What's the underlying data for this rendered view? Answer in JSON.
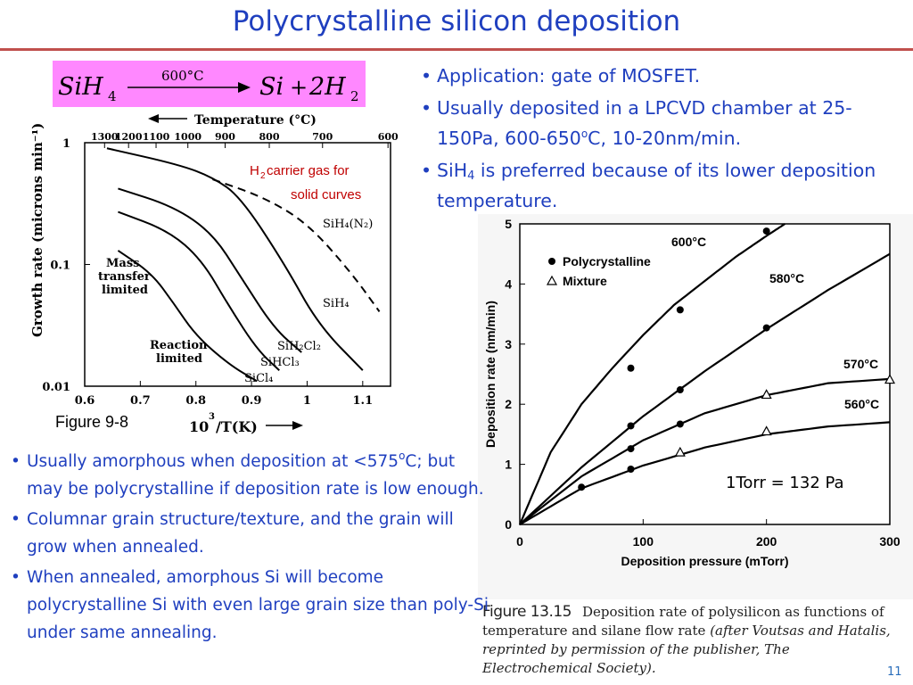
{
  "title": "Polycrystalline silicon deposition",
  "equation": {
    "reactant": "SiH",
    "reactant_sub": "4",
    "condition": "600°C",
    "product1": "Si",
    "plus": "+",
    "product2": "2H",
    "product2_sub": "2"
  },
  "right_bullets": {
    "b1": "Application: gate of MOSFET.",
    "b2": "Usually deposited in a LPCVD chamber at 25-150Pa, 600-650",
    "b2_sup": "o",
    "b2_end": "C, 10-20nm/min.",
    "b3_pre": "SiH",
    "b3_sub": "4",
    "b3_post": " is preferred because of its lower deposition temperature."
  },
  "left_bullets": {
    "b1": "Usually amorphous when deposition at <575",
    "b1_sup": "o",
    "b1_end": "C; but may be polycrystalline if deposition rate is low enough.",
    "b2": "Columnar grain structure/texture, and the grain will grow when annealed.",
    "b3": " When annealed, amorphous Si will become polycrystalline Si with even large grain size than poly-Si under same annealing."
  },
  "bullet_glyph": "•",
  "figure1": {
    "caption": "Figure 9-8",
    "temp_axis_label": "Temperature (°C)",
    "temp_ticks": [
      "1300",
      "1200",
      "1100",
      "1000",
      "900",
      "800",
      "700",
      "600"
    ],
    "ylabel": "Growth rate (microns min⁻¹)",
    "y_ticks": [
      "1",
      "0.1",
      "0.01"
    ],
    "x_ticks": [
      "0.6",
      "0.7",
      "0.8",
      "0.9",
      "1",
      "1.1"
    ],
    "xlabel_base": "10",
    "xlabel_sup": "3",
    "xlabel_rest": "/T(K)",
    "h2_note_pre": "H",
    "h2_note_sub": "2",
    "h2_note_post": " carrier gas for",
    "h2_note_line2": "solid curves",
    "labels": {
      "mass1": "Mass",
      "mass2": "transfer",
      "mass3": "limited",
      "reac1": "Reaction",
      "reac2": "limited",
      "sih4n2": "SiH₄(N₂)",
      "sih4": "SiH₄",
      "sih2cl2": "SiH₂Cl₂",
      "sihcl3": "SiHCl₃",
      "sicl4": "SiCl₄"
    },
    "red_color": "#c00000"
  },
  "note_torr": "1Torr = 132 Pa",
  "figure2_caption": {
    "fig": "Figure 13.15",
    "text": "Deposition rate of polysilicon as functions of temperature and silane flow rate",
    "cite": "(after Voutsas and Hatalis, reprinted by permission of the publisher, The Electrochemical Society)."
  },
  "page_number": "11",
  "chart_data": [
    {
      "type": "line",
      "title": "",
      "xlabel": "10^3/T(K)",
      "ylabel": "Growth rate (microns min⁻¹)",
      "xlim": [
        0.6,
        1.16
      ],
      "ylim": [
        0.01,
        1
      ],
      "y_scale": "log",
      "secondary_x_axis": {
        "label": "Temperature (°C)",
        "ticks": [
          1300,
          1200,
          1100,
          1000,
          900,
          800,
          700,
          600
        ]
      },
      "grid": false,
      "series": [
        {
          "name": "SiH₄(N₂)",
          "style": "dashed",
          "x": [
            0.83,
            0.92,
            1.0,
            1.08,
            1.13
          ],
          "y": [
            0.5,
            0.36,
            0.22,
            0.085,
            0.041
          ]
        },
        {
          "name": "SiH₄",
          "style": "solid",
          "x": [
            0.64,
            0.77,
            0.83,
            0.88,
            0.96,
            1.02,
            1.1
          ],
          "y": [
            0.9,
            0.66,
            0.52,
            0.36,
            0.1,
            0.032,
            0.0135
          ]
        },
        {
          "name": "SiH₂Cl₂",
          "style": "solid",
          "x": [
            0.66,
            0.76,
            0.83,
            0.88,
            0.94,
            0.99
          ],
          "y": [
            0.42,
            0.3,
            0.18,
            0.08,
            0.03,
            0.019
          ]
        },
        {
          "name": "SiHCl₃",
          "style": "solid",
          "x": [
            0.66,
            0.75,
            0.81,
            0.86,
            0.91,
            0.95
          ],
          "y": [
            0.27,
            0.19,
            0.11,
            0.045,
            0.02,
            0.0135
          ]
        },
        {
          "name": "SiCl₄",
          "style": "solid",
          "x": [
            0.66,
            0.72,
            0.76,
            0.8,
            0.86,
            0.91
          ],
          "y": [
            0.13,
            0.085,
            0.048,
            0.026,
            0.015,
            0.011
          ]
        }
      ]
    },
    {
      "type": "line",
      "title": "",
      "xlabel": "Deposition pressure (mTorr)",
      "ylabel": "Deposition rate (nm/min)",
      "xlim": [
        0,
        300
      ],
      "ylim": [
        0,
        5
      ],
      "x_ticks": [
        "0",
        "100",
        "200",
        "300"
      ],
      "y_ticks": [
        "0",
        "1",
        "2",
        "3",
        "4",
        "5"
      ],
      "grid": false,
      "legend": [
        {
          "name": "Polycrystalline",
          "marker": "filled-circle"
        },
        {
          "name": "Mixture",
          "marker": "open-triangle"
        }
      ],
      "legend_position": "top-left",
      "series": [
        {
          "name": "600°C",
          "line": {
            "x": [
              0,
              25,
              50,
              75,
              100,
              125,
              150,
              175,
              200,
              215
            ],
            "y": [
              0,
              1.2,
              2.0,
              2.6,
              3.15,
              3.65,
              4.05,
              4.45,
              4.8,
              5.0
            ]
          },
          "points": [
            {
              "x": 90,
              "y": 2.6,
              "marker": "filled-circle"
            },
            {
              "x": 130,
              "y": 3.57,
              "marker": "filled-circle"
            },
            {
              "x": 200,
              "y": 4.88,
              "marker": "filled-circle"
            }
          ]
        },
        {
          "name": "580°C",
          "line": {
            "x": [
              0,
              50,
              100,
              150,
              200,
              250,
              300
            ],
            "y": [
              0,
              0.95,
              1.8,
              2.55,
              3.25,
              3.9,
              4.5
            ]
          },
          "points": [
            {
              "x": 90,
              "y": 1.64,
              "marker": "filled-circle"
            },
            {
              "x": 130,
              "y": 2.24,
              "marker": "filled-circle"
            },
            {
              "x": 200,
              "y": 3.27,
              "marker": "filled-circle"
            }
          ]
        },
        {
          "name": "570°C",
          "line": {
            "x": [
              0,
              50,
              100,
              150,
              200,
              250,
              300
            ],
            "y": [
              0,
              0.8,
              1.4,
              1.85,
              2.15,
              2.35,
              2.42
            ]
          },
          "points": [
            {
              "x": 90,
              "y": 1.26,
              "marker": "filled-circle"
            },
            {
              "x": 130,
              "y": 1.67,
              "marker": "filled-circle"
            },
            {
              "x": 200,
              "y": 2.16,
              "marker": "open-triangle"
            },
            {
              "x": 300,
              "y": 2.41,
              "marker": "open-triangle"
            }
          ]
        },
        {
          "name": "560°C",
          "line": {
            "x": [
              0,
              50,
              100,
              150,
              200,
              250,
              300
            ],
            "y": [
              0,
              0.6,
              0.98,
              1.28,
              1.5,
              1.63,
              1.7
            ]
          },
          "points": [
            {
              "x": 50,
              "y": 0.62,
              "marker": "filled-circle"
            },
            {
              "x": 90,
              "y": 0.92,
              "marker": "filled-circle"
            },
            {
              "x": 130,
              "y": 1.2,
              "marker": "open-triangle"
            },
            {
              "x": 200,
              "y": 1.55,
              "marker": "open-triangle"
            }
          ]
        }
      ]
    }
  ]
}
